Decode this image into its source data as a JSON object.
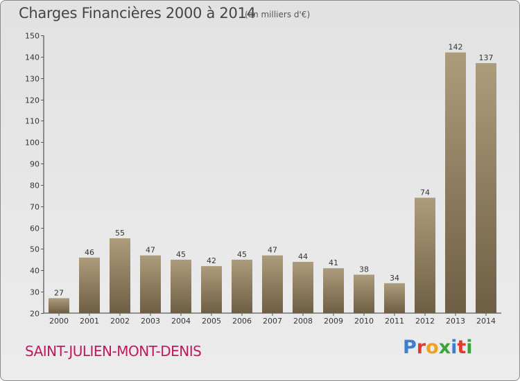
{
  "title": "Charges Financières 2000 à 2014",
  "subtitle": "(en milliers d'€)",
  "commune": "SAINT-JULIEN-MONT-DENIS",
  "logo": {
    "letters": [
      "P",
      "r",
      "o",
      "x",
      "i",
      "t",
      "i"
    ],
    "colors": [
      "#3a7fd0",
      "#e23a2f",
      "#f0a020",
      "#3aa33a",
      "#3a7fd0",
      "#e23a2f",
      "#3aa33a"
    ]
  },
  "colors": {
    "bar_top": "#ad9c7c",
    "bar_bottom": "#6e5e44",
    "axis": "#333333",
    "grid_tick": "#555555",
    "text": "#333333"
  },
  "chart_data": {
    "type": "bar",
    "categories": [
      "2000",
      "2001",
      "2002",
      "2003",
      "2004",
      "2005",
      "2006",
      "2007",
      "2008",
      "2009",
      "2010",
      "2011",
      "2012",
      "2013",
      "2014"
    ],
    "values": [
      27,
      46,
      55,
      47,
      45,
      42,
      45,
      47,
      44,
      41,
      38,
      34,
      74,
      142,
      137
    ],
    "ylim": [
      20,
      150
    ],
    "yticks": [
      20,
      30,
      40,
      50,
      60,
      70,
      80,
      90,
      100,
      110,
      120,
      130,
      140,
      150
    ],
    "title": "Charges Financières 2000 à 2014",
    "xlabel": "",
    "ylabel": "",
    "grid": false,
    "data_labels": true
  }
}
